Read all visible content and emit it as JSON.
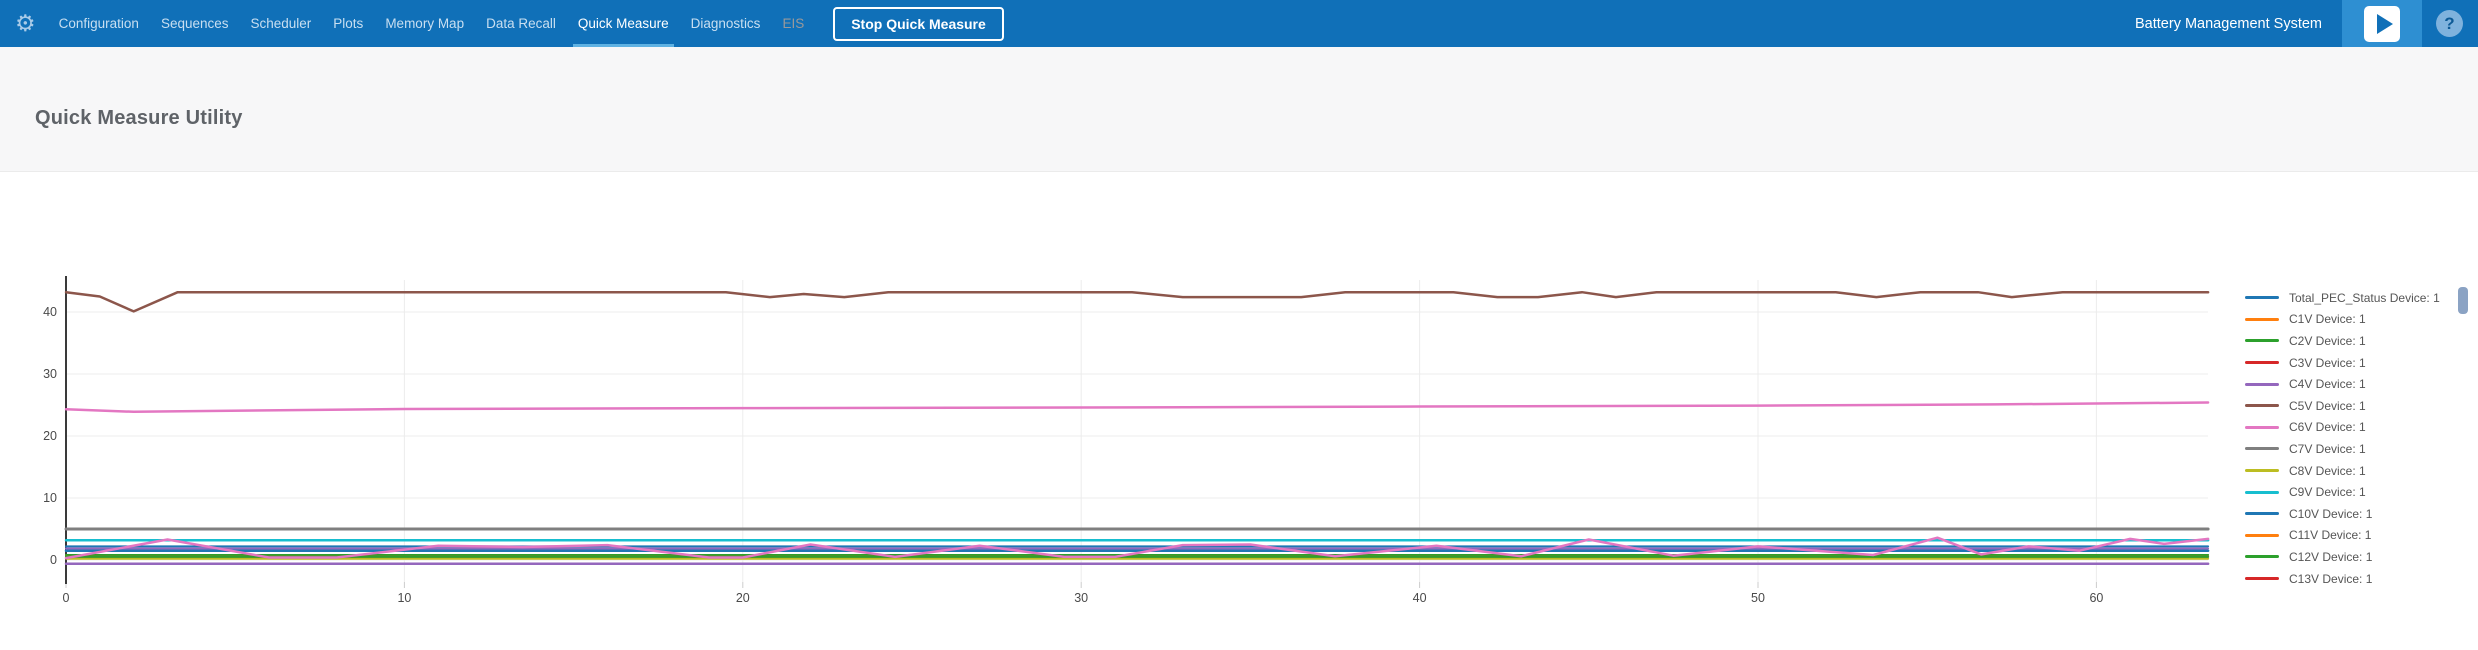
{
  "navbar": {
    "brand": "Battery Management System",
    "stop_button": "Stop Quick Measure",
    "icons": {
      "gear": "⚙",
      "play": "▶",
      "help": "?"
    },
    "items": [
      {
        "label": "Configuration",
        "state": "default"
      },
      {
        "label": "Sequences",
        "state": "default"
      },
      {
        "label": "Scheduler",
        "state": "default"
      },
      {
        "label": "Plots",
        "state": "default"
      },
      {
        "label": "Memory Map",
        "state": "default"
      },
      {
        "label": "Data Recall",
        "state": "default"
      },
      {
        "label": "Quick Measure",
        "state": "active"
      },
      {
        "label": "Diagnostics",
        "state": "default"
      },
      {
        "label": "EIS",
        "state": "disabled"
      }
    ]
  },
  "page": {
    "title": "Quick Measure Utility"
  },
  "chart_data": {
    "type": "line",
    "title": "",
    "xlabel": "",
    "ylabel": "",
    "grid": true,
    "legend_position": "right",
    "xlim": [
      0,
      63.5
    ],
    "ylim": [
      -2,
      44
    ],
    "x_ticks": [
      0,
      10,
      20,
      30,
      40,
      50,
      60
    ],
    "y_ticks": [
      0,
      10,
      20,
      30,
      40
    ],
    "legend": [
      {
        "label": "Total_PEC_Status Device: 1",
        "color": "#1f77b4"
      },
      {
        "label": "C1V Device: 1",
        "color": "#ff7f0e"
      },
      {
        "label": "C2V Device: 1",
        "color": "#2ca02c"
      },
      {
        "label": "C3V Device: 1",
        "color": "#d62728"
      },
      {
        "label": "C4V Device: 1",
        "color": "#9467bd"
      },
      {
        "label": "C5V Device: 1",
        "color": "#8c564b"
      },
      {
        "label": "C6V Device: 1",
        "color": "#e377c2"
      },
      {
        "label": "C7V Device: 1",
        "color": "#7f7f7f"
      },
      {
        "label": "C8V Device: 1",
        "color": "#bcbd22"
      },
      {
        "label": "C9V Device: 1",
        "color": "#17becf"
      },
      {
        "label": "C10V Device: 1",
        "color": "#1f77b4"
      },
      {
        "label": "C11V Device: 1",
        "color": "#ff7f0e"
      },
      {
        "label": "C12V Device: 1",
        "color": "#2ca02c"
      },
      {
        "label": "C13V Device: 1",
        "color": "#d62728"
      }
    ],
    "series": [
      {
        "name": "Total_PEC_Status Device: 1",
        "color": "#1f77b4",
        "width": 2,
        "points": [
          [
            0,
            2.2
          ],
          [
            63.3,
            2.2
          ]
        ]
      },
      {
        "name": "C1V Device: 1",
        "color": "#ff7f0e",
        "width": 2,
        "points": [
          [
            0,
            0.8
          ],
          [
            63.3,
            0.8
          ]
        ]
      },
      {
        "name": "C2V Device: 1",
        "color": "#2ca02c",
        "width": 2,
        "points": [
          [
            0,
            0.8
          ],
          [
            63.3,
            0.8
          ]
        ]
      },
      {
        "name": "C3V Device: 1",
        "color": "#d62728",
        "width": 2,
        "points": [
          [
            0,
            0.5
          ],
          [
            63.3,
            0.5
          ]
        ]
      },
      {
        "name": "C4V Device: 1",
        "color": "#9467bd",
        "width": 2,
        "points": [
          [
            0,
            1.85
          ],
          [
            63.3,
            1.85
          ]
        ]
      },
      {
        "name": "C5V Device: 1",
        "color": "#8c564b",
        "width": 2.5,
        "points": [
          [
            0,
            43.2
          ],
          [
            1,
            42.5
          ],
          [
            2,
            40.1
          ],
          [
            3.3,
            43.2
          ],
          [
            19.5,
            43.2
          ],
          [
            20.8,
            42.4
          ],
          [
            21.8,
            42.9
          ],
          [
            23,
            42.4
          ],
          [
            24.3,
            43.2
          ],
          [
            31.5,
            43.2
          ],
          [
            33,
            42.4
          ],
          [
            36.5,
            42.4
          ],
          [
            37.8,
            43.2
          ],
          [
            41,
            43.2
          ],
          [
            42.3,
            42.4
          ],
          [
            43.5,
            42.4
          ],
          [
            44.8,
            43.2
          ],
          [
            45.8,
            42.4
          ],
          [
            47,
            43.2
          ],
          [
            52.3,
            43.2
          ],
          [
            53.5,
            42.4
          ],
          [
            54.8,
            43.2
          ],
          [
            56.5,
            43.2
          ],
          [
            57.5,
            42.4
          ],
          [
            59,
            43.2
          ],
          [
            63.3,
            43.2
          ]
        ]
      },
      {
        "name": "C6V Device: 1",
        "color": "#e377c2",
        "width": 2.5,
        "points": [
          [
            0,
            24.3
          ],
          [
            2,
            23.9
          ],
          [
            10,
            24.35
          ],
          [
            20,
            24.5
          ],
          [
            30,
            24.6
          ],
          [
            40,
            24.75
          ],
          [
            50,
            24.9
          ],
          [
            57,
            25.1
          ],
          [
            63.3,
            25.4
          ]
        ]
      },
      {
        "name": "C7V Device: 1",
        "color": "#7f7f7f",
        "width": 3,
        "points": [
          [
            0,
            5.0
          ],
          [
            63.3,
            5.0
          ]
        ]
      },
      {
        "name": "C8V Device: 1",
        "color": "#bcbd22",
        "width": 2,
        "points": [
          [
            0,
            0.2
          ],
          [
            63.3,
            0.2
          ]
        ]
      },
      {
        "name": "C9V Device: 1",
        "color": "#17becf",
        "width": 2.5,
        "points": [
          [
            0,
            3.2
          ],
          [
            63.3,
            3.2
          ]
        ]
      },
      {
        "name": "C10V Device: 1",
        "color": "#1f77b4",
        "width": 2.5,
        "points": [
          [
            0,
            1.5
          ],
          [
            63.3,
            1.5
          ]
        ]
      },
      {
        "name": "C11V Device: 1",
        "color": "#ff7f0e",
        "width": 2,
        "points": [
          [
            0,
            0.5
          ],
          [
            63.3,
            0.5
          ]
        ]
      },
      {
        "name": "C12V Device: 1",
        "color": "#2ca02c",
        "width": 2,
        "points": [
          [
            0,
            0.5
          ],
          [
            63.3,
            0.5
          ]
        ]
      },
      {
        "name": "C13V Device: 1",
        "color": "#d62728",
        "width": 2,
        "points": [
          [
            0,
            -0.6
          ],
          [
            63.3,
            -0.6
          ]
        ]
      },
      {
        "name": "",
        "color": "#9467bd",
        "width": 2.5,
        "points": [
          [
            0,
            -0.6
          ],
          [
            63.3,
            -0.6
          ]
        ]
      },
      {
        "name": "",
        "color": "#e377c2",
        "width": 2.5,
        "points": [
          [
            0,
            0.3
          ],
          [
            3,
            3.3
          ],
          [
            6,
            0.4
          ],
          [
            8,
            0.4
          ],
          [
            11,
            2.3
          ],
          [
            13.5,
            2.1
          ],
          [
            16,
            2.4
          ],
          [
            19,
            0.4
          ],
          [
            20,
            0.4
          ],
          [
            22,
            2.5
          ],
          [
            24.5,
            0.5
          ],
          [
            27,
            2.3
          ],
          [
            29.5,
            0.5
          ],
          [
            31,
            0.5
          ],
          [
            33,
            2.4
          ],
          [
            35,
            2.5
          ],
          [
            37.5,
            0.6
          ],
          [
            40.5,
            2.3
          ],
          [
            43,
            0.6
          ],
          [
            45,
            3.3
          ],
          [
            47.5,
            0.7
          ],
          [
            50,
            2.2
          ],
          [
            53.4,
            0.8
          ],
          [
            55.3,
            3.6
          ],
          [
            56.6,
            0.9
          ],
          [
            58,
            2.2
          ],
          [
            59.5,
            1.5
          ],
          [
            61,
            3.4
          ],
          [
            62,
            2.6
          ],
          [
            63.3,
            3.4
          ]
        ]
      }
    ]
  }
}
